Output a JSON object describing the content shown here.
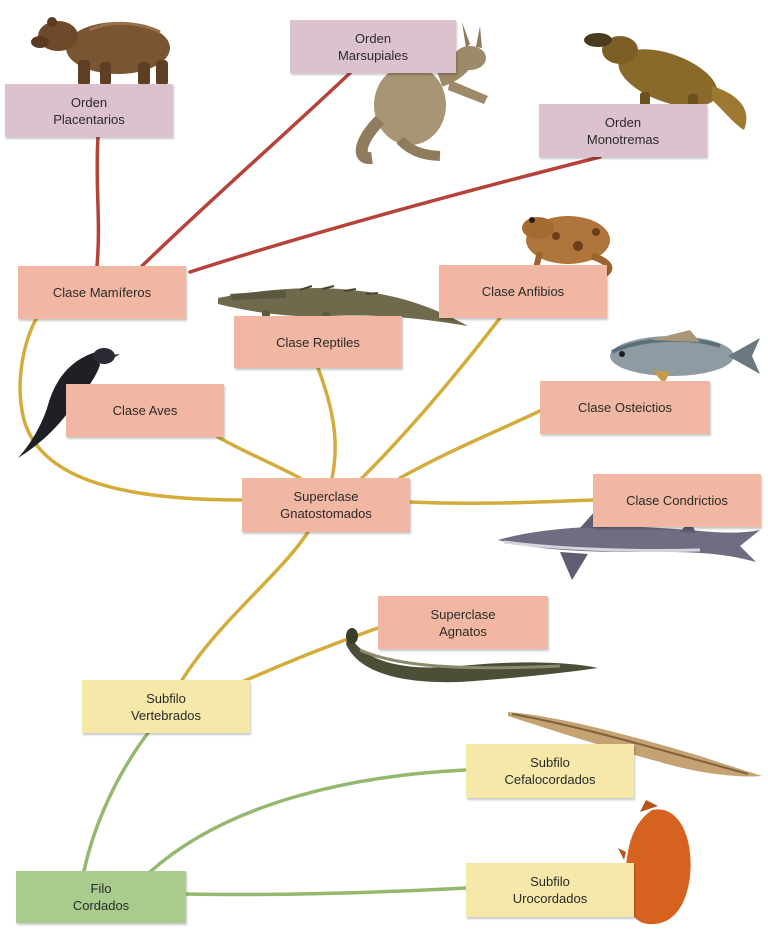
{
  "colors": {
    "mammal_orders": "#dcc1cf",
    "classes": "#f2b7a3",
    "subphyla": "#f5e8a8",
    "phylum": "#a9cb8e",
    "link_red": "#b5433a",
    "link_ochre": "#d4ac3c",
    "link_green": "#94b86e"
  },
  "nodes": {
    "placentarios": {
      "l1": "Orden",
      "l2": "Placentarios",
      "icon": "bear-icon"
    },
    "marsupiales": {
      "l1": "Orden",
      "l2": "Marsupiales",
      "icon": "kangaroo-icon"
    },
    "monotremas": {
      "l1": "Orden",
      "l2": "Monotremas",
      "icon": "platypus-icon"
    },
    "mamiferos": {
      "l1": "Clase Mamíferos"
    },
    "reptiles": {
      "l1": "Clase Reptiles",
      "icon": "crocodile-icon"
    },
    "anfibios": {
      "l1": "Clase Anfibios",
      "icon": "frog-icon"
    },
    "aves": {
      "l1": "Clase Aves",
      "icon": "bird-icon"
    },
    "osteictios": {
      "l1": "Clase Osteictios",
      "icon": "bony-fish-icon"
    },
    "gnatostomados": {
      "l1": "Superclase",
      "l2": "Gnatostomados"
    },
    "condrictios": {
      "l1": "Clase Condrictios",
      "icon": "shark-icon"
    },
    "agnatos": {
      "l1": "Superclase",
      "l2": "Agnatos",
      "icon": "lamprey-icon"
    },
    "vertebrados": {
      "l1": "Subfilo",
      "l2": "Vertebrados"
    },
    "cefalocordados": {
      "l1": "Subfilo",
      "l2": "Cefalocordados",
      "icon": "lancelet-icon"
    },
    "cordados": {
      "l1": "Filo",
      "l2": "Cordados"
    },
    "urocordados": {
      "l1": "Subfilo",
      "l2": "Urocordados",
      "icon": "sea-squirt-icon"
    }
  }
}
